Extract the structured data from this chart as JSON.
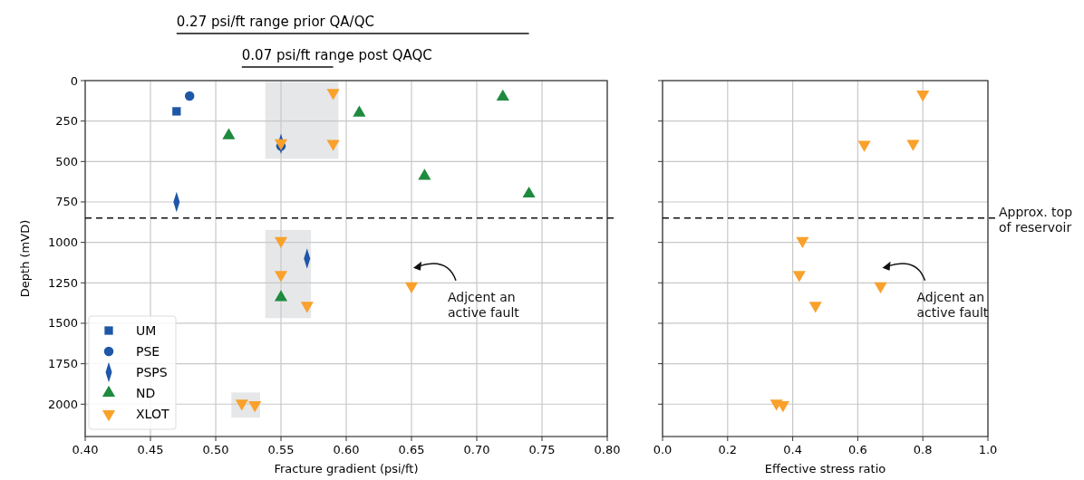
{
  "chart_data": [
    {
      "type": "scatter",
      "xlabel": "Fracture gradient (psi/ft)",
      "ylabel": "Depth (mVD)",
      "xlim": [
        0.4,
        0.8
      ],
      "xticks": [
        {
          "value": 0.4,
          "label": "0.40"
        },
        {
          "value": 0.45,
          "label": "0.45"
        },
        {
          "value": 0.5,
          "label": "0.50"
        },
        {
          "value": 0.55,
          "label": "0.55"
        },
        {
          "value": 0.6,
          "label": "0.60"
        },
        {
          "value": 0.65,
          "label": "0.65"
        },
        {
          "value": 0.7,
          "label": "0.70"
        },
        {
          "value": 0.75,
          "label": "0.75"
        },
        {
          "value": 0.8,
          "label": "0.80"
        }
      ],
      "ylim": [
        2200,
        0
      ],
      "yticks": [
        0,
        250,
        500,
        750,
        1000,
        1250,
        1500,
        1750,
        2000
      ],
      "grid": true,
      "legend": "bottom left",
      "bands": [
        {
          "axis": "x",
          "from": 0.538,
          "to": 0.594,
          "color": "#e5e7e9"
        },
        {
          "axis": "x",
          "from": 0.538,
          "to": 0.573,
          "color": "#e5e7e9"
        },
        {
          "axis": "x",
          "from": 0.512,
          "to": 0.534,
          "color": "#e5e7e9"
        }
      ],
      "ref_lines": [
        {
          "axis": "y",
          "value": 850,
          "line_style": "dashed"
        }
      ],
      "annotations": [
        "0.27 psi/ft range prior QA/QC",
        "0.07 psi/ft range post QAQC",
        {
          "text": "Adjcent an\nactive fault",
          "x": 0.65,
          "y": 1270
        }
      ],
      "series": [
        {
          "name": "UM",
          "color": "#1f57a8",
          "marker": "square",
          "x": [
            0.47
          ],
          "values": [
            190
          ]
        },
        {
          "name": "PSE",
          "color": "#1f57a8",
          "marker": "circle",
          "x": [
            0.48,
            0.55
          ],
          "values": [
            95,
            405
          ]
        },
        {
          "name": "PSPS",
          "color": "#1f57a8",
          "marker": "diamond",
          "x": [
            0.47,
            0.55,
            0.57
          ],
          "values": [
            750,
            390,
            1100
          ]
        },
        {
          "name": "ND",
          "color": "#1e8a3e",
          "marker": "triangle",
          "x": [
            0.51,
            0.61,
            0.72,
            0.66,
            0.74,
            0.55
          ],
          "values": [
            340,
            200,
            100,
            590,
            700,
            1340
          ]
        },
        {
          "name": "XLOT",
          "color": "#f9a12b",
          "marker": "triangle-down",
          "x": [
            0.59,
            0.59,
            0.55,
            0.55,
            0.55,
            0.57,
            0.65,
            0.52,
            0.53
          ],
          "values": [
            75,
            390,
            385,
            990,
            1200,
            1390,
            1270,
            1995,
            2005
          ]
        }
      ]
    },
    {
      "type": "scatter",
      "xlabel": "Effective stress ratio",
      "xlim": [
        0,
        1
      ],
      "xticks": [
        {
          "value": 0,
          "label": "0.0"
        },
        {
          "value": 0.2,
          "label": "0.2"
        },
        {
          "value": 0.4,
          "label": "0.4"
        },
        {
          "value": 0.6,
          "label": "0.6"
        },
        {
          "value": 0.8,
          "label": "0.8"
        },
        {
          "value": 1,
          "label": "1.0"
        }
      ],
      "ylim": [
        2200,
        0
      ],
      "yticks": [
        0,
        250,
        500,
        750,
        1000,
        1250,
        1500,
        1750,
        2000
      ],
      "tick_labels": "x",
      "grid": true,
      "ref_lines": [
        {
          "axis": "y",
          "value": 850,
          "label": "Approx. top\nof reservoir",
          "line_style": "dashed"
        }
      ],
      "annotations": [
        {
          "text": "Adjcent an\nactive fault",
          "x": 0.67,
          "y": 1270
        }
      ],
      "series": [
        {
          "color": "#f9a12b",
          "marker": "triangle-down",
          "x": [
            0.8,
            0.62,
            0.77,
            0.43,
            0.42,
            0.47,
            0.67,
            0.35,
            0.37
          ],
          "values": [
            85,
            395,
            390,
            990,
            1200,
            1390,
            1270,
            1995,
            2005
          ]
        }
      ]
    }
  ]
}
